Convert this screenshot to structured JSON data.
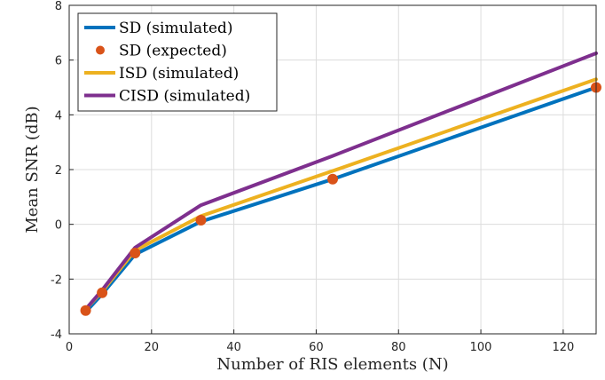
{
  "chart_data": {
    "type": "line",
    "title": "",
    "xlabel": "Number of RIS elements (N)",
    "ylabel": "Mean SNR (dB)",
    "xlim": [
      0,
      128
    ],
    "ylim": [
      -4,
      8
    ],
    "xticks": [
      0,
      20,
      40,
      60,
      80,
      100,
      120
    ],
    "yticks": [
      -4,
      -2,
      0,
      2,
      4,
      6,
      8
    ],
    "xtick_labels": [
      "0",
      "20",
      "40",
      "60",
      "80",
      "100",
      "120"
    ],
    "ytick_labels": [
      "-4",
      "-2",
      "0",
      "2",
      "4",
      "6",
      "8"
    ],
    "grid": true,
    "legend_position": "top-left",
    "series": [
      {
        "name": "SD (simulated)",
        "style": "line",
        "color": "#0072BD",
        "x": [
          4,
          8,
          16,
          32,
          64,
          128
        ],
        "y": [
          -3.2,
          -2.55,
          -1.1,
          0.1,
          1.65,
          5.0
        ]
      },
      {
        "name": "SD (expected)",
        "style": "marker",
        "color": "#D95319",
        "x": [
          4,
          8,
          16,
          32,
          64,
          128
        ],
        "y": [
          -3.15,
          -2.5,
          -1.05,
          0.15,
          1.65,
          5.0
        ]
      },
      {
        "name": "ISD (simulated)",
        "style": "line",
        "color": "#EDB120",
        "x": [
          4,
          8,
          16,
          32,
          64,
          128
        ],
        "y": [
          -3.1,
          -2.45,
          -0.95,
          0.3,
          1.95,
          5.3
        ]
      },
      {
        "name": "CISD (simulated)",
        "style": "line",
        "color": "#7E2F8E",
        "x": [
          4,
          8,
          16,
          32,
          64,
          128
        ],
        "y": [
          -3.1,
          -2.4,
          -0.85,
          0.7,
          2.5,
          6.25
        ]
      }
    ]
  }
}
